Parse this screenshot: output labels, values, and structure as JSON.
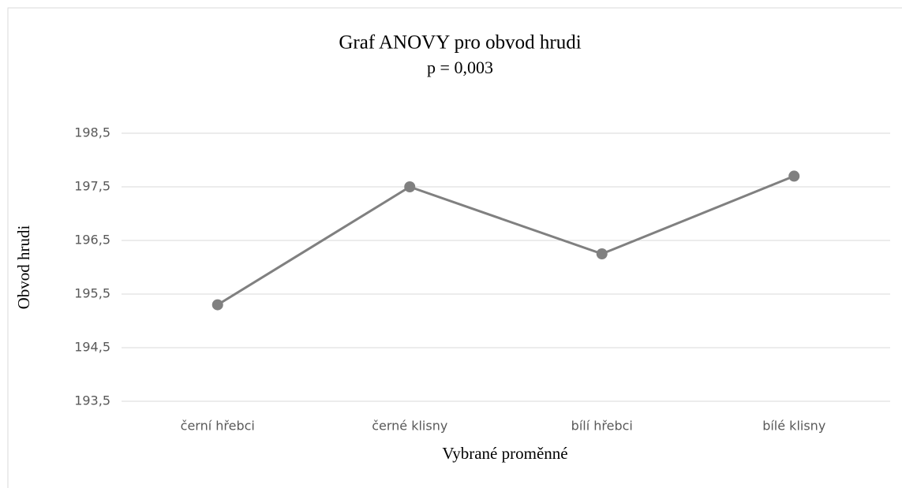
{
  "chart_data": {
    "type": "line",
    "title": "Graf ANOVY pro obvod hrudi",
    "subtitle": "p = 0,003",
    "x_label": "Vybrané proměnné",
    "y_label": "Obvod hrudi",
    "categories": [
      "černí hřebci",
      "černé klisny",
      "bílí hřebci",
      "bílé klisny"
    ],
    "series": [
      {
        "name": "Obvod hrudi",
        "color": "#808080",
        "values": [
          195.3,
          197.5,
          196.25,
          197.7
        ]
      }
    ],
    "ylim": [
      193.5,
      198.5
    ],
    "yticks": [
      {
        "value": 193.5,
        "label": "193,5"
      },
      {
        "value": 194.5,
        "label": "194,5"
      },
      {
        "value": 195.5,
        "label": "195,5"
      },
      {
        "value": 196.5,
        "label": "196,5"
      },
      {
        "value": 197.5,
        "label": "197,5"
      },
      {
        "value": 198.5,
        "label": "198,5"
      }
    ],
    "grid": true
  }
}
